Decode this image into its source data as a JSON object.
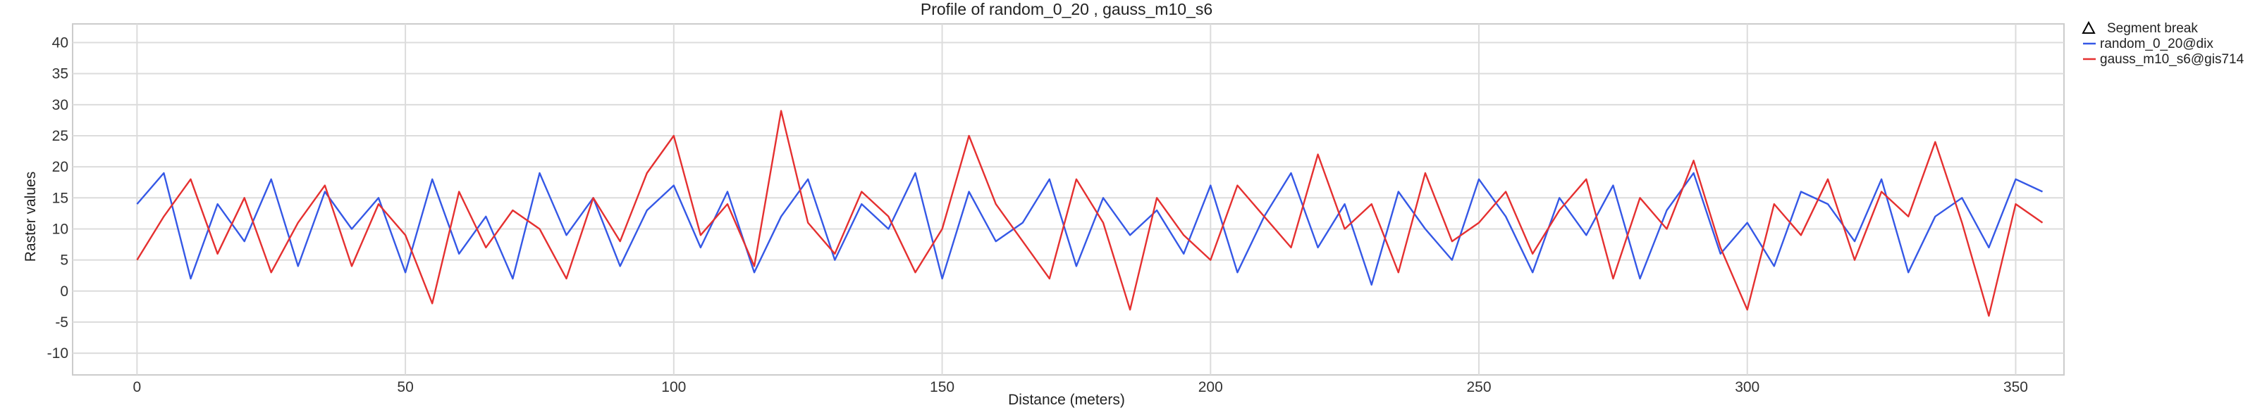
{
  "chart_data": {
    "type": "line",
    "title": "Profile of random_0_20 , gauss_m10_s6",
    "xlabel": "Distance (meters)",
    "ylabel": "Raster values",
    "xlim": [
      -12,
      359
    ],
    "ylim": [
      -13.5,
      43
    ],
    "x_ticks": [
      0,
      50,
      100,
      150,
      200,
      250,
      300,
      350
    ],
    "y_ticks": [
      -10,
      -5,
      0,
      5,
      10,
      15,
      20,
      25,
      30,
      35,
      40
    ],
    "grid": true,
    "legend_position": "top-right",
    "legend": [
      {
        "label": "Segment break",
        "marker": "triangle-outline",
        "color": "#000000"
      },
      {
        "label": "random_0_20@dix",
        "color": "#3558e6"
      },
      {
        "label": "gauss_m10_s6@gis714",
        "color": "#e53030"
      }
    ],
    "series": [
      {
        "name": "random_0_20@dix",
        "color": "#3558e6",
        "x": [
          0,
          5,
          10,
          15,
          20,
          25,
          30,
          35,
          40,
          45,
          50,
          55,
          60,
          65,
          70,
          75,
          80,
          85,
          90,
          95,
          100,
          105,
          110,
          115,
          120,
          125,
          130,
          135,
          140,
          145,
          150,
          155,
          160,
          165,
          170,
          175,
          180,
          185,
          190,
          195,
          200,
          205,
          210,
          215,
          220,
          225,
          230,
          235,
          240,
          245,
          250,
          255,
          260,
          265,
          270,
          275,
          280,
          285,
          290,
          295,
          300,
          305,
          310,
          315,
          320,
          325,
          330,
          335,
          340,
          345,
          350,
          355
        ],
        "values": [
          14,
          19,
          2,
          14,
          8,
          18,
          4,
          16,
          10,
          15,
          3,
          18,
          6,
          12,
          2,
          19,
          9,
          15,
          4,
          13,
          17,
          7,
          16,
          3,
          12,
          18,
          5,
          14,
          10,
          19,
          2,
          16,
          8,
          11,
          18,
          4,
          15,
          9,
          13,
          6,
          17,
          3,
          12,
          19,
          7,
          14,
          1,
          16,
          10,
          5,
          18,
          12,
          3,
          15,
          9,
          17,
          2,
          13,
          19,
          6,
          11,
          4,
          16,
          14,
          8,
          18,
          3,
          12,
          15,
          7,
          18,
          16
        ]
      },
      {
        "name": "gauss_m10_s6@gis714",
        "color": "#e53030",
        "x": [
          0,
          5,
          10,
          15,
          20,
          25,
          30,
          35,
          40,
          45,
          50,
          55,
          60,
          65,
          70,
          75,
          80,
          85,
          90,
          95,
          100,
          105,
          110,
          115,
          120,
          125,
          130,
          135,
          140,
          145,
          150,
          155,
          160,
          165,
          170,
          175,
          180,
          185,
          190,
          195,
          200,
          205,
          210,
          215,
          220,
          225,
          230,
          235,
          240,
          245,
          250,
          255,
          260,
          265,
          270,
          275,
          280,
          285,
          290,
          295,
          300,
          305,
          310,
          315,
          320,
          325,
          330,
          335,
          340,
          345,
          350,
          355
        ],
        "values": [
          5,
          12,
          18,
          6,
          15,
          3,
          11,
          17,
          4,
          14,
          9,
          -2,
          16,
          7,
          13,
          10,
          2,
          15,
          8,
          19,
          25,
          9,
          14,
          4,
          29,
          11,
          6,
          16,
          12,
          3,
          10,
          25,
          14,
          8,
          2,
          18,
          11,
          -3,
          15,
          9,
          5,
          17,
          12,
          7,
          22,
          10,
          14,
          3,
          19,
          8,
          11,
          16,
          6,
          13,
          18,
          2,
          15,
          10,
          21,
          7,
          -3,
          14,
          9,
          18,
          5,
          16,
          12,
          24,
          11,
          -4,
          14,
          11
        ]
      }
    ]
  }
}
